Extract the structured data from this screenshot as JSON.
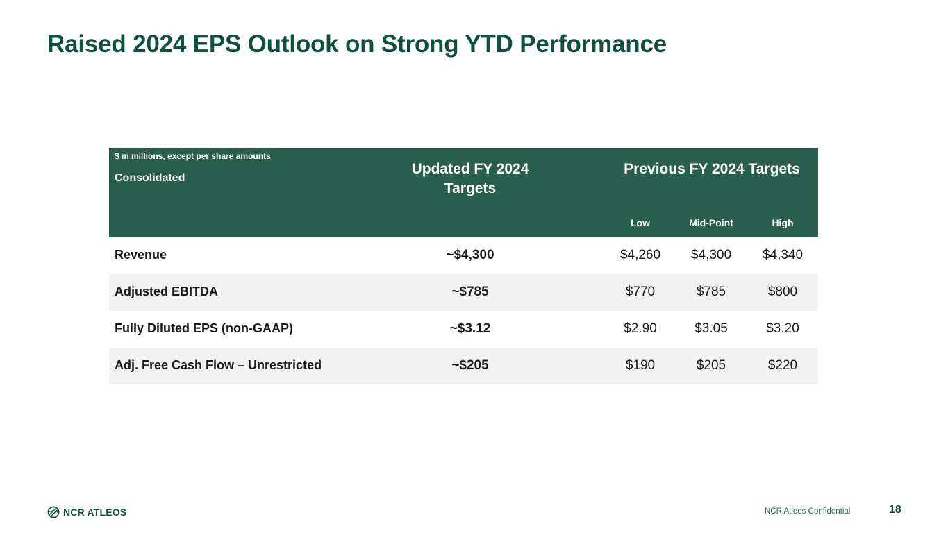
{
  "slide": {
    "title": "Raised 2024 EPS Outlook on Strong YTD Performance",
    "page_number": "18"
  },
  "table": {
    "units_note": "$ in millions, except per share amounts",
    "row_header": "Consolidated",
    "updated_header": "Updated FY 2024 Targets",
    "previous_header": "Previous FY 2024 Targets",
    "sub_headers": {
      "low": "Low",
      "mid": "Mid-Point",
      "high": "High"
    },
    "rows": [
      {
        "metric": "Revenue",
        "updated": "~$4,300",
        "low": "$4,260",
        "mid": "$4,300",
        "high": "$4,340"
      },
      {
        "metric": "Adjusted EBITDA",
        "updated": "~$785",
        "low": "$770",
        "mid": "$785",
        "high": "$800"
      },
      {
        "metric": "Fully Diluted EPS (non-GAAP)",
        "updated": "~$3.12",
        "low": "$2.90",
        "mid": "$3.05",
        "high": "$3.20"
      },
      {
        "metric": "Adj. Free Cash Flow – Unrestricted",
        "updated": "~$205",
        "low": "$190",
        "mid": "$205",
        "high": "$220"
      }
    ]
  },
  "footer": {
    "logo_text": "NCR ATLEOS",
    "confidential": "NCR Atleos Confidential",
    "logo_icon": "atleos-globe-icon"
  },
  "colors": {
    "brand_green": "#0f5040",
    "header_green": "#2a5e4e",
    "row_alt": "#f2f2f2"
  }
}
